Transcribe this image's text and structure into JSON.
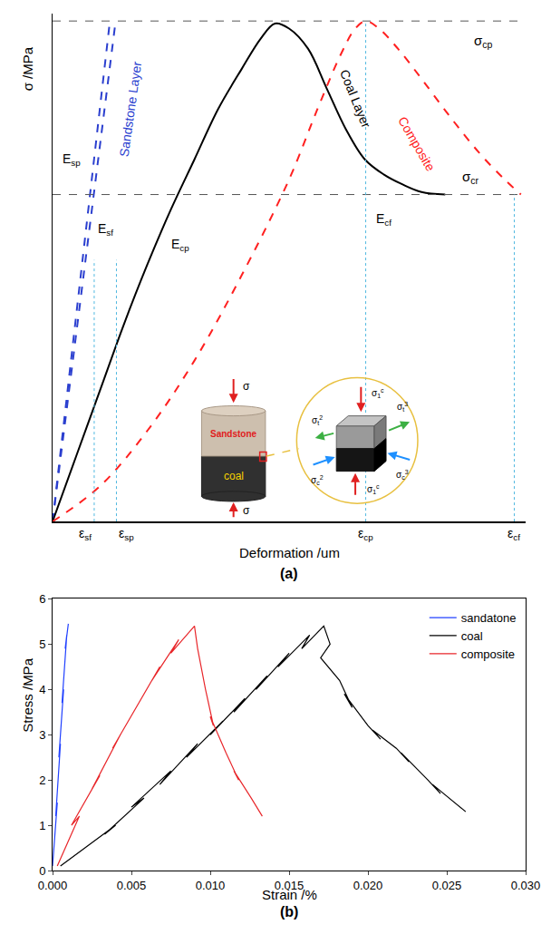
{
  "chart_data": [
    {
      "label": "(a)",
      "type": "line",
      "x_label": "Deformation /um",
      "y_label": "σ /MPa",
      "xlim": [
        0,
        100
      ],
      "ylim": [
        0,
        101
      ],
      "tick_labels": false,
      "grid": false,
      "series": [
        {
          "color": "#2b3fcf",
          "line_style": "dash",
          "x": [
            0,
            12
          ],
          "y": [
            0,
            98.5
          ]
        },
        {
          "color": "#2b3fcf",
          "line_style": "dash",
          "x": [
            0,
            13.2
          ],
          "y": [
            0,
            98.5
          ]
        },
        {
          "color": "#000000",
          "line_style": "solid",
          "x": [
            0,
            5,
            10,
            15,
            20,
            25,
            30,
            35,
            40,
            44,
            47,
            50,
            54,
            58,
            62,
            66,
            70,
            74,
            78,
            83
          ],
          "y": [
            0,
            13,
            26,
            39,
            51,
            62,
            72,
            82,
            90,
            96,
            99,
            98,
            94,
            86,
            78,
            72,
            69,
            67,
            65.5,
            65
          ]
        },
        {
          "color": "#ff2020",
          "line_style": "dash",
          "x": [
            0,
            10,
            20,
            30,
            40,
            50,
            56,
            61,
            64,
            66.2,
            69,
            73,
            78,
            84,
            90,
            95,
            99
          ],
          "y": [
            0,
            7,
            18,
            32,
            49,
            68,
            82,
            93,
            98,
            99.5,
            98,
            94,
            88,
            80.5,
            73.5,
            68.5,
            65
          ]
        }
      ],
      "curve_labels": [
        {
          "text": "Sandstone Layer",
          "color": "#2b3fcf",
          "at": [
            16.5,
            82
          ]
        },
        {
          "text": "Coal Layer",
          "color": "#000000",
          "at": [
            64,
            84
          ]
        },
        {
          "text": "Composite",
          "color": "#ff2020",
          "at": [
            77,
            75
          ]
        }
      ],
      "reference_lines": [
        {
          "y": 99.5,
          "label": {
            "text": "σ",
            "sub": "cp"
          },
          "label_at": [
            91,
            95.5
          ]
        },
        {
          "y": 65,
          "label": {
            "text": "σ",
            "sub": "cr"
          },
          "label_at": [
            88.5,
            68.5
          ]
        }
      ],
      "guides": [
        {
          "x": 8.8,
          "y_end": 52,
          "label": {
            "text": "ε",
            "sub": "sf"
          }
        },
        {
          "x": 13.5,
          "y_end": 52,
          "label": {
            "text": "ε",
            "sub": "sp"
          }
        },
        {
          "x": 66.2,
          "y_end": 99.5,
          "label": {
            "text": "ε",
            "sub": "cp"
          }
        },
        {
          "x": 97.6,
          "y_end": 65,
          "label": {
            "text": "ε",
            "sub": "cf"
          }
        }
      ],
      "moduli": [
        {
          "text": "E",
          "sub": "sp",
          "at": [
            4,
            72
          ]
        },
        {
          "text": "E",
          "sub": "sf",
          "at": [
            11.2,
            58
          ]
        },
        {
          "text": "E",
          "sub": "cp",
          "at": [
            27,
            55
          ]
        },
        {
          "text": "E",
          "sub": "cf",
          "at": [
            70,
            60
          ]
        }
      ],
      "inset": {
        "specimen": [
          "Sandstone",
          "coal"
        ],
        "load": {
          "text": "σ"
        },
        "stresses": [
          {
            "text": "σ",
            "sub": "1",
            "sup": "c"
          },
          {
            "text": "σ",
            "sub": "1",
            "sup": "c"
          },
          {
            "text": "σ",
            "sub": "t",
            "sup": "3"
          },
          {
            "text": "σ",
            "sub": "t",
            "sup": "2"
          },
          {
            "text": "σ",
            "sub": "c",
            "sup": "2"
          },
          {
            "text": "σ",
            "sub": "c",
            "sup": "3"
          }
        ]
      }
    },
    {
      "label": "(b)",
      "type": "line",
      "x_label": "Strain /%",
      "y_label": "Stress /MPa",
      "xlim": [
        0,
        0.03
      ],
      "ylim": [
        0,
        6
      ],
      "xticks": [
        {
          "value": 0,
          "label": "0.000"
        },
        {
          "value": 0.005,
          "label": "0.005"
        },
        {
          "value": 0.01,
          "label": "0.010"
        },
        {
          "value": 0.015,
          "label": "0.015"
        },
        {
          "value": 0.02,
          "label": "0.020"
        },
        {
          "value": 0.025,
          "label": "0.025"
        },
        {
          "value": 0.03,
          "label": "0.030"
        }
      ],
      "yticks": [
        0,
        1,
        2,
        3,
        4,
        5,
        6
      ],
      "legend": "upper right",
      "grid": false,
      "series": [
        {
          "name": "sandatone",
          "color": "#2040ff",
          "x": [
            0.0,
            0.0003,
            0.0002,
            0.0005,
            0.0004,
            0.0007,
            0.0006,
            0.0009,
            0.0008,
            0.001
          ],
          "y": [
            0.1,
            1.5,
            1.2,
            2.8,
            2.5,
            4.0,
            3.7,
            5.2,
            4.9,
            5.45
          ]
        },
        {
          "name": "coal",
          "color": "#000000",
          "x": [
            0.0005,
            0.004,
            0.0033,
            0.0058,
            0.005,
            0.0075,
            0.0068,
            0.0092,
            0.0085,
            0.0108,
            0.01,
            0.0122,
            0.0115,
            0.0136,
            0.0129,
            0.015,
            0.0143,
            0.0163,
            0.0158,
            0.0172,
            0.0176,
            0.017,
            0.0182,
            0.019,
            0.0185,
            0.02,
            0.0208,
            0.0203,
            0.0218,
            0.0226,
            0.0221,
            0.0238,
            0.0246,
            0.0241,
            0.0262
          ],
          "y": [
            0.1,
            1.0,
            0.8,
            1.6,
            1.4,
            2.2,
            1.9,
            2.8,
            2.5,
            3.3,
            3.0,
            3.8,
            3.5,
            4.3,
            4.0,
            4.8,
            4.5,
            5.2,
            4.9,
            5.4,
            5.0,
            4.7,
            4.2,
            3.6,
            3.9,
            3.2,
            2.9,
            3.1,
            2.7,
            2.4,
            2.6,
            2.0,
            1.7,
            1.9,
            1.3
          ]
        },
        {
          "name": "composite",
          "color": "#e8262a",
          "x": [
            0.0003,
            0.0017,
            0.0012,
            0.003,
            0.0025,
            0.0043,
            0.0038,
            0.0056,
            0.0051,
            0.0068,
            0.0063,
            0.008,
            0.0075,
            0.009,
            0.0092,
            0.0097,
            0.0102,
            0.01,
            0.011,
            0.0118,
            0.0115,
            0.0126,
            0.0133
          ],
          "y": [
            0.1,
            1.2,
            1.0,
            2.1,
            1.8,
            3.0,
            2.7,
            3.8,
            3.5,
            4.5,
            4.2,
            5.1,
            4.8,
            5.4,
            4.9,
            4.0,
            3.2,
            3.4,
            2.6,
            2.0,
            2.2,
            1.6,
            1.2
          ]
        }
      ]
    }
  ]
}
